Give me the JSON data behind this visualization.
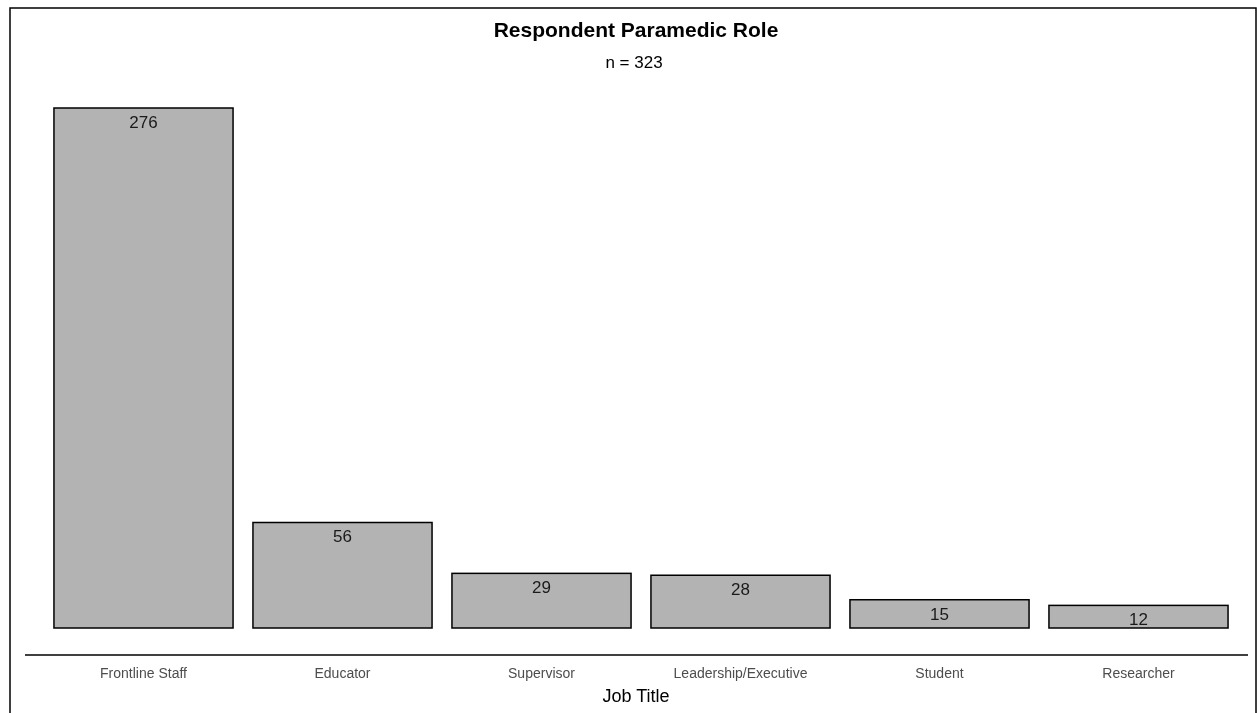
{
  "chart_data": {
    "type": "bar",
    "title": "Respondent Paramedic Role",
    "subtitle": "n = 323",
    "xlabel": "Job Title",
    "categories": [
      "Frontline Staff",
      "Educator",
      "Supervisor",
      "Leadership/Executive",
      "Student",
      "Researcher"
    ],
    "values": [
      276,
      56,
      29,
      28,
      15,
      12
    ],
    "color": "#b3b3b3",
    "data_labels": true
  }
}
